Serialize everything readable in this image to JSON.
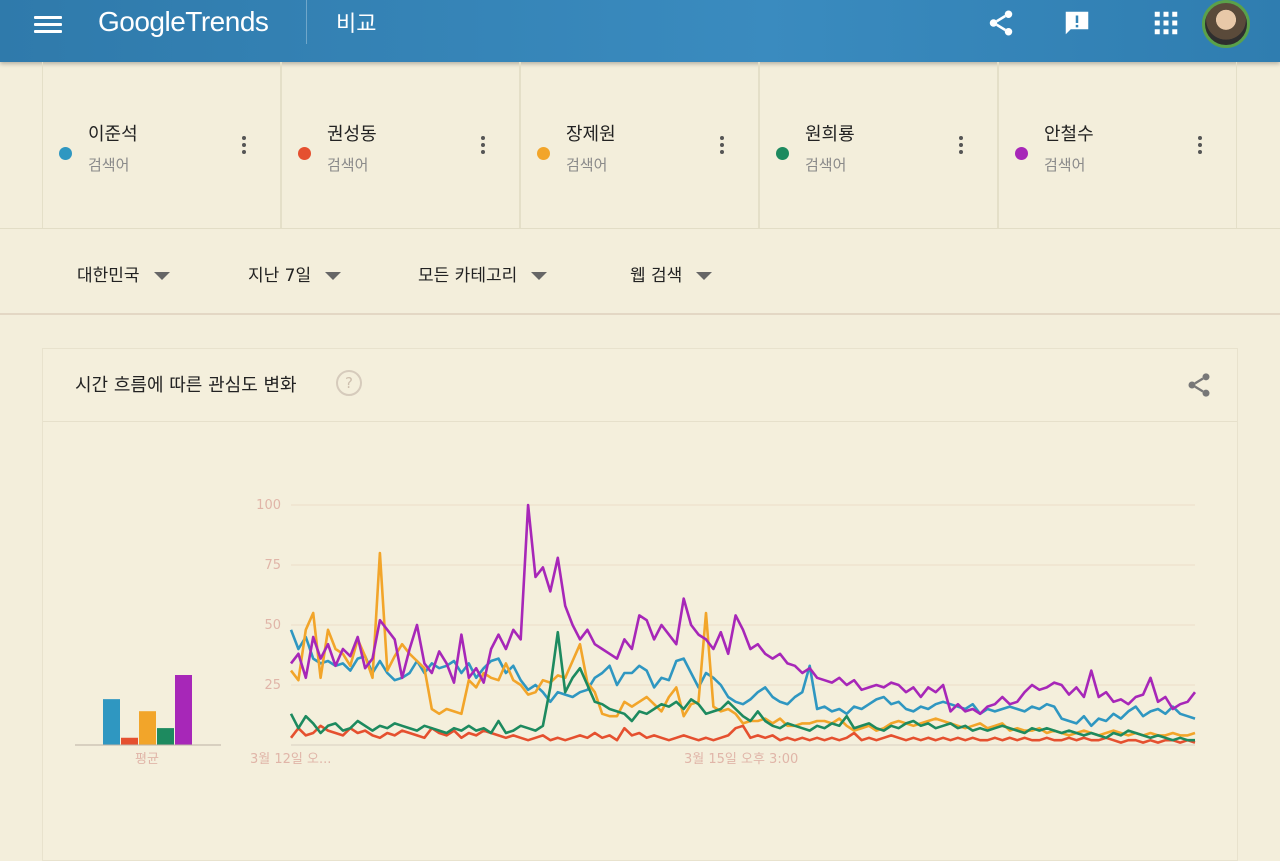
{
  "header": {
    "logo_google": "Google",
    "logo_trends": "Trends",
    "title": "비교"
  },
  "icons": {
    "menu": "hamburger-menu-icon",
    "share": "share-icon",
    "feedback": "feedback-icon",
    "apps": "apps-grid-icon"
  },
  "terms": [
    {
      "name": "이준석",
      "type": "검색어",
      "color": "#2f97c1"
    },
    {
      "name": "권성동",
      "type": "검색어",
      "color": "#e5502f"
    },
    {
      "name": "장제원",
      "type": "검색어",
      "color": "#f2a52a"
    },
    {
      "name": "원희룡",
      "type": "검색어",
      "color": "#1d8a5f"
    },
    {
      "name": "안철수",
      "type": "검색어",
      "color": "#a727b8"
    }
  ],
  "filters": {
    "region": "대한민국",
    "period": "지난 7일",
    "category": "모든 카테고리",
    "search_type": "웹 검색"
  },
  "card": {
    "title": "시간 흐름에 따른 관심도 변화"
  },
  "chart_data": {
    "type": "line",
    "ylim": [
      0,
      100
    ],
    "yticks": [
      "100",
      "75",
      "50",
      "25"
    ],
    "xtick_labels": [
      "3월 12일 오...",
      "3월 15일 오후 3:00"
    ],
    "average_label": "평균",
    "averages": [
      19,
      3,
      14,
      7,
      29
    ],
    "series": [
      {
        "name": "이준석",
        "color": "#2f97c1",
        "values": [
          48,
          40,
          45,
          36,
          34,
          35,
          33,
          34,
          31,
          36,
          37,
          30,
          35,
          30,
          27,
          28,
          30,
          35,
          30,
          34,
          32,
          33,
          35,
          30,
          34,
          28,
          32,
          35,
          36,
          30,
          33,
          27,
          23,
          25,
          22,
          18,
          22,
          21,
          20,
          22,
          23,
          28,
          30,
          33,
          25,
          30,
          30,
          33,
          31,
          24,
          28,
          27,
          35,
          36,
          30,
          24,
          30,
          28,
          25,
          20,
          18,
          17,
          19,
          22,
          24,
          20,
          18,
          17,
          20,
          22,
          33,
          15,
          16,
          14,
          15,
          13,
          16,
          15,
          17,
          19,
          20,
          17,
          18,
          15,
          14,
          16,
          15,
          17,
          18,
          17,
          16,
          15,
          17,
          13,
          15,
          14,
          15,
          16,
          15,
          14,
          16,
          15,
          17,
          16,
          11,
          10,
          9,
          12,
          8,
          11,
          10,
          13,
          11,
          14,
          16,
          12,
          14,
          15,
          13,
          16,
          13,
          12,
          11
        ]
      },
      {
        "name": "권성동",
        "color": "#e5502f",
        "values": [
          3,
          7,
          4,
          5,
          8,
          6,
          5,
          4,
          7,
          5,
          6,
          4,
          3,
          5,
          4,
          6,
          5,
          4,
          3,
          7,
          5,
          4,
          6,
          3,
          5,
          4,
          6,
          5,
          4,
          3,
          4,
          3,
          2,
          3,
          4,
          2,
          3,
          2,
          3,
          4,
          3,
          5,
          3,
          4,
          2,
          7,
          4,
          5,
          3,
          4,
          3,
          2,
          3,
          4,
          3,
          2,
          3,
          2,
          3,
          4,
          7,
          8,
          3,
          4,
          3,
          4,
          2,
          3,
          2,
          3,
          2,
          3,
          2,
          3,
          2,
          3,
          5,
          2,
          3,
          2,
          3,
          4,
          3,
          2,
          3,
          2,
          3,
          2,
          3,
          2,
          3,
          2,
          3,
          2,
          2,
          3,
          2,
          3,
          2,
          3,
          2,
          2,
          3,
          2,
          2,
          3,
          2,
          3,
          2,
          2,
          3,
          2,
          1,
          2,
          2,
          1,
          2,
          1,
          2,
          2,
          1,
          2,
          1
        ]
      },
      {
        "name": "장제원",
        "color": "#f2a52a",
        "values": [
          31,
          27,
          48,
          55,
          28,
          48,
          40,
          38,
          33,
          44,
          37,
          28,
          80,
          31,
          37,
          42,
          38,
          35,
          32,
          15,
          13,
          15,
          14,
          13,
          27,
          24,
          30,
          28,
          27,
          34,
          27,
          25,
          21,
          22,
          27,
          26,
          29,
          28,
          35,
          42,
          26,
          22,
          13,
          12,
          12,
          18,
          16,
          18,
          20,
          17,
          14,
          20,
          24,
          12,
          17,
          18,
          55,
          16,
          14,
          15,
          13,
          9,
          10,
          10,
          11,
          9,
          11,
          8,
          8,
          9,
          9,
          10,
          10,
          9,
          11,
          8,
          6,
          7,
          8,
          6,
          7,
          9,
          10,
          9,
          8,
          9,
          10,
          11,
          10,
          9,
          8,
          7,
          8,
          9,
          7,
          8,
          9,
          6,
          7,
          6,
          6,
          7,
          5,
          6,
          5,
          4,
          5,
          6,
          5,
          4,
          5,
          6,
          5,
          4,
          5,
          4,
          5,
          4,
          4,
          5,
          4,
          4,
          5
        ]
      },
      {
        "name": "원희룡",
        "color": "#1d8a5f",
        "values": [
          13,
          7,
          12,
          9,
          5,
          8,
          9,
          6,
          7,
          10,
          8,
          6,
          8,
          7,
          9,
          8,
          7,
          6,
          8,
          7,
          6,
          5,
          7,
          6,
          8,
          6,
          7,
          5,
          10,
          5,
          6,
          8,
          7,
          6,
          8,
          24,
          47,
          22,
          28,
          32,
          25,
          18,
          17,
          15,
          14,
          13,
          10,
          14,
          13,
          15,
          17,
          16,
          18,
          15,
          19,
          17,
          13,
          14,
          15,
          18,
          15,
          12,
          10,
          14,
          10,
          8,
          7,
          9,
          8,
          7,
          6,
          8,
          7,
          9,
          8,
          12,
          7,
          8,
          9,
          7,
          6,
          8,
          7,
          9,
          10,
          8,
          9,
          7,
          8,
          9,
          7,
          8,
          6,
          7,
          6,
          7,
          8,
          7,
          6,
          5,
          7,
          6,
          7,
          6,
          5,
          6,
          5,
          4,
          5,
          4,
          3,
          5,
          4,
          6,
          5,
          4,
          3,
          4,
          3,
          2,
          3,
          2,
          2
        ]
      },
      {
        "name": "안철수",
        "color": "#a727b8",
        "values": [
          34,
          38,
          28,
          45,
          36,
          42,
          33,
          40,
          37,
          45,
          32,
          36,
          52,
          48,
          44,
          28,
          40,
          50,
          34,
          30,
          39,
          34,
          26,
          46,
          28,
          32,
          26,
          40,
          46,
          40,
          48,
          44,
          100,
          70,
          74,
          64,
          78,
          58,
          50,
          44,
          48,
          42,
          40,
          38,
          36,
          44,
          40,
          54,
          52,
          44,
          50,
          46,
          42,
          61,
          50,
          46,
          44,
          40,
          47,
          38,
          54,
          48,
          40,
          42,
          38,
          36,
          38,
          34,
          33,
          30,
          32,
          28,
          27,
          26,
          28,
          25,
          27,
          23,
          24,
          25,
          24,
          26,
          25,
          22,
          24,
          20,
          24,
          22,
          25,
          14,
          17,
          14,
          15,
          13,
          16,
          17,
          20,
          17,
          18,
          22,
          25,
          23,
          24,
          26,
          25,
          21,
          24,
          20,
          31,
          20,
          22,
          18,
          19,
          17,
          20,
          21,
          28,
          18,
          20,
          15,
          17,
          18,
          22
        ]
      }
    ]
  }
}
